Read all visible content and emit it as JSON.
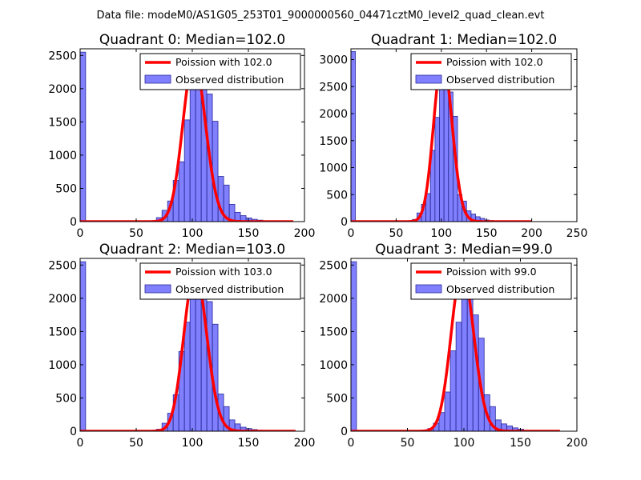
{
  "suptitle": "Data file: modeM0/AS1G05_253T01_9000000560_04471cztM0_level2_quad_clean.evt",
  "colors": {
    "bar_fill": "#8080ff",
    "bar_edge": "#2a2a9a",
    "curve": "#ff0000",
    "legend_border": "#000000"
  },
  "chart_data": [
    {
      "type": "bar",
      "title": "Quadrant 0: Median=102.0",
      "xlim": [
        0,
        200
      ],
      "ylim": [
        0,
        2600
      ],
      "xticks": [
        "0",
        "50",
        "100",
        "150",
        "200"
      ],
      "yticks": [
        "0",
        "500",
        "1000",
        "1500",
        "2000",
        "2500"
      ],
      "xtick_values": [
        0,
        50,
        100,
        150,
        200
      ],
      "ytick_values": [
        0,
        500,
        1000,
        1500,
        2000,
        2500
      ],
      "bin_width": 4.9,
      "bars": [
        [
          0,
          2550
        ],
        [
          63,
          10
        ],
        [
          68,
          60
        ],
        [
          73,
          170
        ],
        [
          78,
          310
        ],
        [
          83,
          620
        ],
        [
          88,
          900
        ],
        [
          93,
          1530
        ],
        [
          98,
          2050
        ],
        [
          103,
          2280
        ],
        [
          108,
          2180
        ],
        [
          113,
          1920
        ],
        [
          118,
          1510
        ],
        [
          123,
          680
        ],
        [
          128,
          550
        ],
        [
          133,
          260
        ],
        [
          138,
          140
        ],
        [
          143,
          90
        ],
        [
          148,
          55
        ],
        [
          153,
          35
        ],
        [
          158,
          22
        ],
        [
          163,
          12
        ]
      ],
      "poisson_lambda": 102.0,
      "poisson_peak": 2430,
      "poisson_range": [
        0,
        190
      ],
      "legend": {
        "curve": "Poission with 102.0",
        "bars": "Observed distribution"
      }
    },
    {
      "type": "bar",
      "title": "Quadrant 1: Median=102.0",
      "xlim": [
        0,
        250
      ],
      "ylim": [
        0,
        3200
      ],
      "xticks": [
        "0",
        "50",
        "100",
        "150",
        "200",
        "250"
      ],
      "yticks": [
        "0",
        "500",
        "1000",
        "1500",
        "2000",
        "2500",
        "3000"
      ],
      "xtick_values": [
        0,
        50,
        100,
        150,
        200,
        250
      ],
      "ytick_values": [
        0,
        500,
        1000,
        1500,
        2000,
        2500,
        3000
      ],
      "bin_width": 4.9,
      "bars": [
        [
          0,
          3150
        ],
        [
          68,
          40
        ],
        [
          73,
          160
        ],
        [
          78,
          320
        ],
        [
          83,
          520
        ],
        [
          88,
          1320
        ],
        [
          93,
          1930
        ],
        [
          98,
          2580
        ],
        [
          103,
          2900
        ],
        [
          108,
          2400
        ],
        [
          113,
          1950
        ],
        [
          118,
          500
        ],
        [
          123,
          380
        ],
        [
          128,
          200
        ],
        [
          133,
          140
        ],
        [
          138,
          90
        ],
        [
          143,
          60
        ],
        [
          148,
          30
        ],
        [
          153,
          20
        ]
      ],
      "poisson_lambda": 102.0,
      "poisson_peak": 3030,
      "poisson_range": [
        0,
        200
      ],
      "legend": {
        "curve": "Poission with 102.0",
        "bars": "Observed distribution"
      }
    },
    {
      "type": "bar",
      "title": "Quadrant 2: Median=103.0",
      "xlim": [
        0,
        200
      ],
      "ylim": [
        0,
        2600
      ],
      "xticks": [
        "0",
        "50",
        "100",
        "150",
        "200"
      ],
      "yticks": [
        "0",
        "500",
        "1000",
        "1500",
        "2000",
        "2500"
      ],
      "xtick_values": [
        0,
        50,
        100,
        150,
        200
      ],
      "ytick_values": [
        0,
        500,
        1000,
        1500,
        2000,
        2500
      ],
      "bin_width": 4.9,
      "bars": [
        [
          0,
          2550
        ],
        [
          68,
          30
        ],
        [
          73,
          120
        ],
        [
          78,
          270
        ],
        [
          83,
          550
        ],
        [
          88,
          1200
        ],
        [
          93,
          1640
        ],
        [
          98,
          2320
        ],
        [
          103,
          2370
        ],
        [
          108,
          2260
        ],
        [
          113,
          1950
        ],
        [
          118,
          1610
        ],
        [
          123,
          560
        ],
        [
          128,
          370
        ],
        [
          133,
          170
        ],
        [
          138,
          110
        ],
        [
          143,
          60
        ],
        [
          148,
          40
        ],
        [
          153,
          25
        ],
        [
          158,
          15
        ]
      ],
      "poisson_lambda": 103.0,
      "poisson_peak": 2410,
      "poisson_range": [
        0,
        192
      ],
      "legend": {
        "curve": "Poission with 103.0",
        "bars": "Observed distribution"
      }
    },
    {
      "type": "bar",
      "title": "Quadrant 3: Median=99.0",
      "xlim": [
        0,
        200
      ],
      "ylim": [
        0,
        2600
      ],
      "xticks": [
        "0",
        "50",
        "100",
        "150",
        "200"
      ],
      "yticks": [
        "0",
        "500",
        "1000",
        "1500",
        "2000",
        "2500"
      ],
      "xtick_values": [
        0,
        50,
        100,
        150,
        200
      ],
      "ytick_values": [
        0,
        500,
        1000,
        1500,
        2000,
        2500
      ],
      "bin_width": 4.9,
      "bars": [
        [
          0,
          2550
        ],
        [
          68,
          40
        ],
        [
          73,
          120
        ],
        [
          78,
          280
        ],
        [
          83,
          590
        ],
        [
          88,
          1210
        ],
        [
          93,
          1640
        ],
        [
          98,
          2150
        ],
        [
          103,
          2140
        ],
        [
          108,
          1750
        ],
        [
          113,
          1400
        ],
        [
          118,
          550
        ],
        [
          123,
          370
        ],
        [
          128,
          170
        ],
        [
          133,
          110
        ],
        [
          138,
          80
        ],
        [
          143,
          50
        ],
        [
          148,
          30
        ]
      ],
      "poisson_lambda": 99.0,
      "poisson_peak": 2430,
      "poisson_range": [
        0,
        185
      ],
      "legend": {
        "curve": "Poission with 99.0",
        "bars": "Observed distribution"
      }
    }
  ]
}
